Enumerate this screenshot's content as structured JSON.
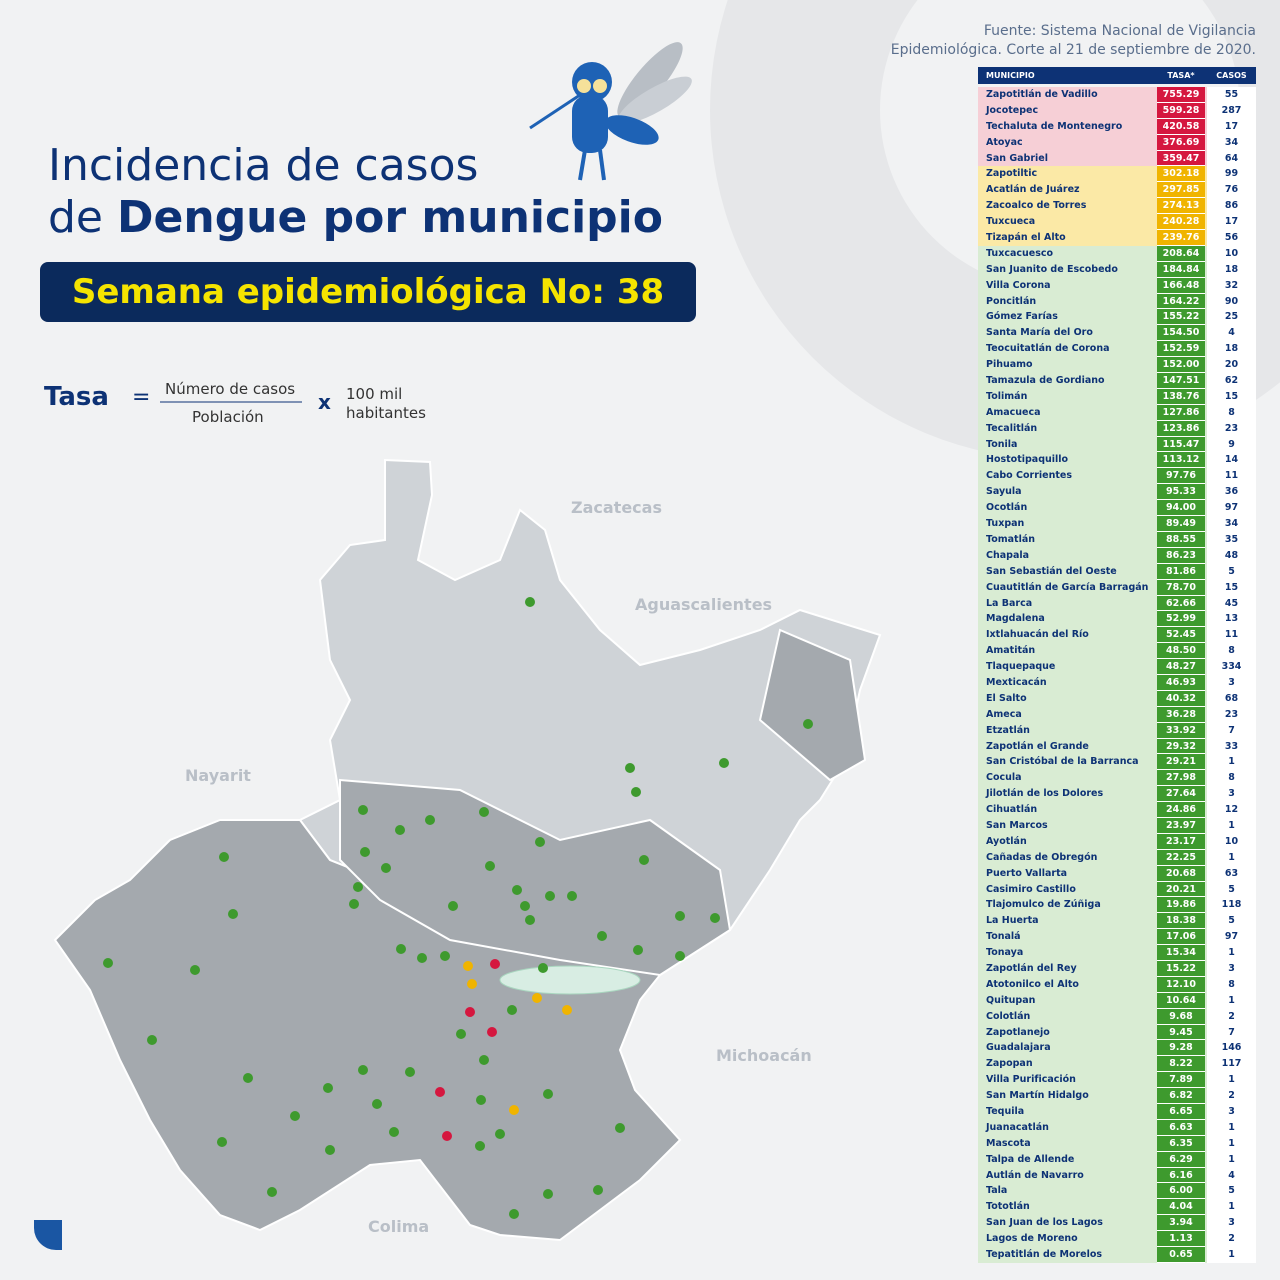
{
  "header": {
    "title_line1": "Incidencia de casos",
    "title_line2_prefix": "de",
    "title_line2_bold": "Dengue por municipio",
    "week": "Semana epidemiológica No: 38"
  },
  "formula": {
    "label": "Tasa",
    "equals": "=",
    "numerator": "Número de casos",
    "denominator": "Población",
    "times": "x",
    "factor_line1": "100 mil",
    "factor_line2": "habitantes"
  },
  "source": {
    "line1": "Fuente: Sistema Nacional de Vigilancia",
    "line2": "Epidemiológica. Corte al 21 de septiembre de 2020."
  },
  "map": {
    "labels": [
      "Zacatecas",
      "Aguascalientes",
      "Nayarit",
      "Michoacán",
      "Colima"
    ]
  },
  "table": {
    "headers": [
      "MUNICIPIO",
      "TASA*",
      "CASOS"
    ],
    "rows": [
      [
        "Zapotitlán de Vadillo",
        "755.29",
        "55"
      ],
      [
        "Jocotepec",
        "599.28",
        "287"
      ],
      [
        "Techaluta de Montenegro",
        "420.58",
        "17"
      ],
      [
        "Atoyac",
        "376.69",
        "34"
      ],
      [
        "San Gabriel",
        "359.47",
        "64"
      ],
      [
        "Zapotiltic",
        "302.18",
        "99"
      ],
      [
        "Acatlán de Juárez",
        "297.85",
        "76"
      ],
      [
        "Zacoalco de Torres",
        "274.13",
        "86"
      ],
      [
        "Tuxcueca",
        "240.28",
        "17"
      ],
      [
        "Tizapán el Alto",
        "239.76",
        "56"
      ],
      [
        "Tuxcacuesco",
        "208.64",
        "10"
      ],
      [
        "San Juanito de Escobedo",
        "184.84",
        "18"
      ],
      [
        "Villa Corona",
        "166.48",
        "32"
      ],
      [
        "Poncitlán",
        "164.22",
        "90"
      ],
      [
        "Gómez Farías",
        "155.22",
        "25"
      ],
      [
        "Santa María del Oro",
        "154.50",
        "4"
      ],
      [
        "Teocuitatlán de Corona",
        "152.59",
        "18"
      ],
      [
        "Pihuamo",
        "152.00",
        "20"
      ],
      [
        "Tamazula de Gordiano",
        "147.51",
        "62"
      ],
      [
        "Tolimán",
        "138.76",
        "15"
      ],
      [
        "Amacueca",
        "127.86",
        "8"
      ],
      [
        "Tecalitlán",
        "123.86",
        "23"
      ],
      [
        "Tonila",
        "115.47",
        "9"
      ],
      [
        "Hostotipaquillo",
        "113.12",
        "14"
      ],
      [
        "Cabo Corrientes",
        "97.76",
        "11"
      ],
      [
        "Sayula",
        "95.33",
        "36"
      ],
      [
        "Ocotlán",
        "94.00",
        "97"
      ],
      [
        "Tuxpan",
        "89.49",
        "34"
      ],
      [
        "Tomatlán",
        "88.55",
        "35"
      ],
      [
        "Chapala",
        "86.23",
        "48"
      ],
      [
        "San Sebastián del Oeste",
        "81.86",
        "5"
      ],
      [
        "Cuautitlán de García Barragán",
        "78.70",
        "15"
      ],
      [
        "La Barca",
        "62.66",
        "45"
      ],
      [
        "Magdalena",
        "52.99",
        "13"
      ],
      [
        "Ixtlahuacán del Río",
        "52.45",
        "11"
      ],
      [
        "Amatitán",
        "48.50",
        "8"
      ],
      [
        "Tlaquepaque",
        "48.27",
        "334"
      ],
      [
        "Mexticacán",
        "46.93",
        "3"
      ],
      [
        "El Salto",
        "40.32",
        "68"
      ],
      [
        "Ameca",
        "36.28",
        "23"
      ],
      [
        "Etzatlán",
        "33.92",
        "7"
      ],
      [
        "Zapotlán el Grande",
        "29.32",
        "33"
      ],
      [
        "San Cristóbal de la Barranca",
        "29.21",
        "1"
      ],
      [
        "Cocula",
        "27.98",
        "8"
      ],
      [
        "Jilotlán de los Dolores",
        "27.64",
        "3"
      ],
      [
        "Cihuatlán",
        "24.86",
        "12"
      ],
      [
        "San Marcos",
        "23.97",
        "1"
      ],
      [
        "Ayotlán",
        "23.17",
        "10"
      ],
      [
        "Cañadas de Obregón",
        "22.25",
        "1"
      ],
      [
        "Puerto Vallarta",
        "20.68",
        "63"
      ],
      [
        "Casimiro Castillo",
        "20.21",
        "5"
      ],
      [
        "Tlajomulco de Zúñiga",
        "19.86",
        "118"
      ],
      [
        "La Huerta",
        "18.38",
        "5"
      ],
      [
        "Tonalá",
        "17.06",
        "97"
      ],
      [
        "Tonaya",
        "15.34",
        "1"
      ],
      [
        "Zapotlán del Rey",
        "15.22",
        "3"
      ],
      [
        "Atotonilco el Alto",
        "12.10",
        "8"
      ],
      [
        "Quitupan",
        "10.64",
        "1"
      ],
      [
        "Colotlán",
        "9.68",
        "2"
      ],
      [
        "Zapotlanejo",
        "9.45",
        "7"
      ],
      [
        "Guadalajara",
        "9.28",
        "146"
      ],
      [
        "Zapopan",
        "8.22",
        "117"
      ],
      [
        "Villa Purificación",
        "7.89",
        "1"
      ],
      [
        "San Martín Hidalgo",
        "6.82",
        "2"
      ],
      [
        "Tequila",
        "6.65",
        "3"
      ],
      [
        "Juanacatlán",
        "6.63",
        "1"
      ],
      [
        "Mascota",
        "6.35",
        "1"
      ],
      [
        "Talpa de Allende",
        "6.29",
        "1"
      ],
      [
        "Autlán de Navarro",
        "6.16",
        "4"
      ],
      [
        "Tala",
        "6.00",
        "5"
      ],
      [
        "Tototlán",
        "4.04",
        "1"
      ],
      [
        "San Juan de los Lagos",
        "3.94",
        "3"
      ],
      [
        "Lagos de Moreno",
        "1.13",
        "2"
      ],
      [
        "Tepatitlán de Morelos",
        "0.65",
        "1"
      ]
    ]
  }
}
